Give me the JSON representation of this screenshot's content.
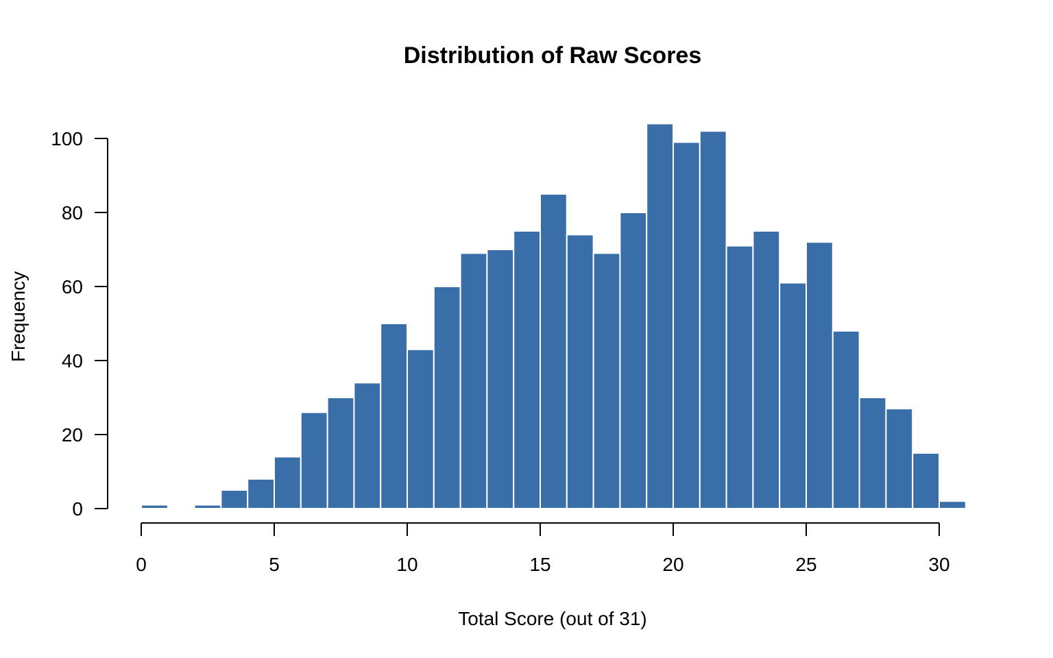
{
  "chart_data": {
    "type": "bar",
    "title": "Distribution of Raw Scores",
    "xlabel": "Total Score (out of 31)",
    "ylabel": "Frequency",
    "bin_width": 1,
    "bins": [
      {
        "start": 0,
        "end": 1,
        "count": 1
      },
      {
        "start": 1,
        "end": 2,
        "count": 0
      },
      {
        "start": 2,
        "end": 3,
        "count": 1
      },
      {
        "start": 3,
        "end": 4,
        "count": 5
      },
      {
        "start": 4,
        "end": 5,
        "count": 8
      },
      {
        "start": 5,
        "end": 6,
        "count": 14
      },
      {
        "start": 6,
        "end": 7,
        "count": 26
      },
      {
        "start": 7,
        "end": 8,
        "count": 30
      },
      {
        "start": 8,
        "end": 9,
        "count": 34
      },
      {
        "start": 9,
        "end": 10,
        "count": 50
      },
      {
        "start": 10,
        "end": 11,
        "count": 43
      },
      {
        "start": 11,
        "end": 12,
        "count": 60
      },
      {
        "start": 12,
        "end": 13,
        "count": 69
      },
      {
        "start": 13,
        "end": 14,
        "count": 70
      },
      {
        "start": 14,
        "end": 15,
        "count": 75
      },
      {
        "start": 15,
        "end": 16,
        "count": 85
      },
      {
        "start": 16,
        "end": 17,
        "count": 74
      },
      {
        "start": 17,
        "end": 18,
        "count": 69
      },
      {
        "start": 18,
        "end": 19,
        "count": 80
      },
      {
        "start": 19,
        "end": 20,
        "count": 104
      },
      {
        "start": 20,
        "end": 21,
        "count": 99
      },
      {
        "start": 21,
        "end": 22,
        "count": 102
      },
      {
        "start": 22,
        "end": 23,
        "count": 71
      },
      {
        "start": 23,
        "end": 24,
        "count": 75
      },
      {
        "start": 24,
        "end": 25,
        "count": 61
      },
      {
        "start": 25,
        "end": 26,
        "count": 72
      },
      {
        "start": 26,
        "end": 27,
        "count": 48
      },
      {
        "start": 27,
        "end": 28,
        "count": 30
      },
      {
        "start": 28,
        "end": 29,
        "count": 27
      },
      {
        "start": 29,
        "end": 30,
        "count": 15
      },
      {
        "start": 30,
        "end": 31,
        "count": 2
      }
    ],
    "xlim": [
      0,
      31
    ],
    "ylim": [
      0,
      104
    ],
    "x_ticks": [
      0,
      5,
      10,
      15,
      20,
      25,
      30
    ],
    "y_ticks": [
      0,
      20,
      40,
      60,
      80,
      100
    ],
    "bar_color": "#3a6ea8",
    "bar_edge_color": "#ffffff",
    "grid": false,
    "legend": "none"
  }
}
